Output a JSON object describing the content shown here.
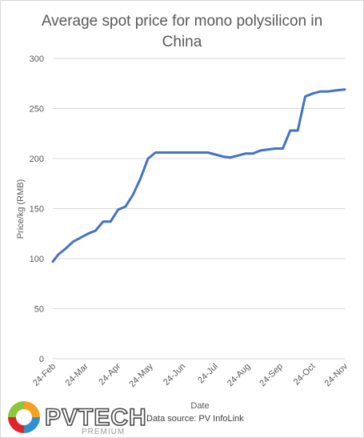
{
  "chart_data": {
    "type": "line",
    "title": "Average spot price for mono polysilicon in China",
    "title_lines": [
      "Average spot price for mono polysilicon in",
      "China"
    ],
    "xlabel": "Date",
    "ylabel": "Price/kg (RMB)",
    "ylim": [
      0,
      300
    ],
    "yticks": [
      0,
      50,
      100,
      150,
      200,
      250,
      300
    ],
    "xticks": [
      "24-Feb",
      "24-Mar",
      "24-Apr",
      "24-May",
      "24-Jun",
      "24-Jul",
      "24-Aug",
      "24-Sep",
      "24-Oct",
      "24-Nov"
    ],
    "xrange": [
      "2017-02-24",
      "2017-11-24"
    ],
    "grid": true,
    "line_color": "#4472c4",
    "series": [
      {
        "x": [
          "2017-02-24",
          "2017-03-01",
          "2017-03-08",
          "2017-03-15",
          "2017-03-22",
          "2017-03-29",
          "2017-04-05",
          "2017-04-12",
          "2017-04-19",
          "2017-04-26",
          "2017-05-03",
          "2017-05-10",
          "2017-05-17",
          "2017-05-24",
          "2017-05-31",
          "2017-06-07",
          "2017-06-14",
          "2017-06-21",
          "2017-06-28",
          "2017-07-05",
          "2017-07-12",
          "2017-07-19",
          "2017-07-26",
          "2017-08-02",
          "2017-08-09",
          "2017-08-16",
          "2017-08-23",
          "2017-08-30",
          "2017-09-06",
          "2017-09-13",
          "2017-09-20",
          "2017-09-27",
          "2017-10-04",
          "2017-10-11",
          "2017-10-18",
          "2017-10-25",
          "2017-11-01",
          "2017-11-08",
          "2017-11-15",
          "2017-11-24"
        ],
        "y": [
          97,
          104,
          110,
          117,
          121,
          125,
          128,
          137,
          137,
          149,
          152,
          164,
          180,
          200,
          206,
          206,
          206,
          206,
          206,
          206,
          206,
          206,
          204,
          202,
          201,
          203,
          205,
          205,
          208,
          209,
          210,
          210,
          228,
          228,
          262,
          265,
          267,
          267,
          268,
          269
        ]
      }
    ]
  },
  "footer": {
    "logo_text": "PVTECH",
    "logo_subtext": "PREMIUM",
    "source": "Data source: PV InfoLink"
  }
}
